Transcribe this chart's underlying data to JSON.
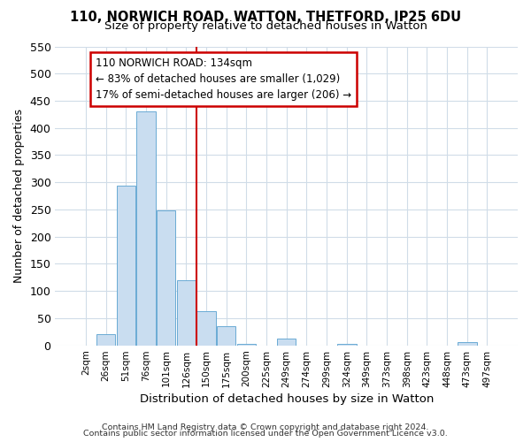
{
  "title": "110, NORWICH ROAD, WATTON, THETFORD, IP25 6DU",
  "subtitle": "Size of property relative to detached houses in Watton",
  "xlabel": "Distribution of detached houses by size in Watton",
  "ylabel": "Number of detached properties",
  "bar_labels": [
    "2sqm",
    "26sqm",
    "51sqm",
    "76sqm",
    "101sqm",
    "126sqm",
    "150sqm",
    "175sqm",
    "200sqm",
    "225sqm",
    "249sqm",
    "274sqm",
    "299sqm",
    "324sqm",
    "349sqm",
    "373sqm",
    "398sqm",
    "423sqm",
    "448sqm",
    "473sqm",
    "497sqm"
  ],
  "bar_values": [
    0,
    20,
    293,
    430,
    248,
    120,
    63,
    35,
    3,
    0,
    12,
    0,
    0,
    3,
    0,
    0,
    0,
    0,
    0,
    5,
    0
  ],
  "bar_color": "#c9ddf0",
  "bar_edge_color": "#6aaad4",
  "vline_x": 5.5,
  "vline_color": "#cc0000",
  "ylim": [
    0,
    550
  ],
  "yticks": [
    0,
    50,
    100,
    150,
    200,
    250,
    300,
    350,
    400,
    450,
    500,
    550
  ],
  "annotation_line1": "110 NORWICH ROAD: 134sqm",
  "annotation_line2": "← 83% of detached houses are smaller (1,029)",
  "annotation_line3": "17% of semi-detached houses are larger (206) →",
  "annotation_box_color": "#ffffff",
  "annotation_box_edge": "#cc0000",
  "footer1": "Contains HM Land Registry data © Crown copyright and database right 2024.",
  "footer2": "Contains public sector information licensed under the Open Government Licence v3.0.",
  "background_color": "#ffffff",
  "grid_color": "#d0dce8"
}
